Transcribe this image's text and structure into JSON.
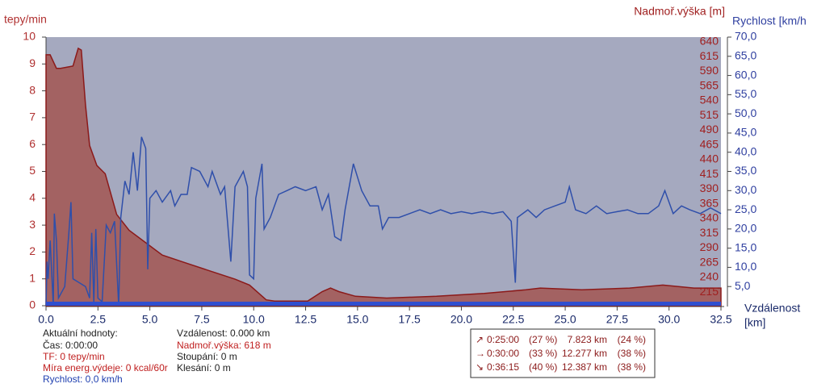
{
  "chart_data": {
    "type": "area-line",
    "x_label": "Vzdálenost",
    "x_unit": "[km]",
    "y_label": "tepy/min",
    "y2_label": "Nadmoř.výška [m]",
    "y3_label": "Rychlost [km/h",
    "xlim": [
      0,
      32.5
    ],
    "xticks": [
      {
        "value": 0,
        "label": "0.0"
      },
      2.5,
      {
        "value": 5,
        "label": "5.0"
      },
      7.5,
      {
        "value": 10,
        "label": "10.0"
      },
      12.5,
      {
        "value": 15,
        "label": "15.0"
      },
      17.5,
      {
        "value": 20,
        "label": "20.0"
      },
      22.5,
      {
        "value": 25,
        "label": "25.0"
      },
      27.5,
      {
        "value": 30,
        "label": "30.0"
      },
      32.5
    ],
    "ylim": [
      0,
      10
    ],
    "yticks": [
      0,
      1,
      2,
      3,
      4,
      5,
      6,
      7,
      8,
      9,
      10
    ],
    "y2lim": [
      192,
      648
    ],
    "y2ticks": [
      215,
      240,
      265,
      290,
      315,
      340,
      365,
      390,
      415,
      440,
      465,
      490,
      515,
      540,
      565,
      590,
      615,
      640
    ],
    "y3lim": [
      0,
      70
    ],
    "y3ticks": [
      {
        "value": 5,
        "label": "5,0"
      },
      {
        "value": 10,
        "label": "10,0"
      },
      {
        "value": 15,
        "label": "15,0"
      },
      {
        "value": 20,
        "label": "20,0"
      },
      {
        "value": 25,
        "label": "25,0"
      },
      {
        "value": 30,
        "label": "30,0"
      },
      {
        "value": 35,
        "label": "35,0"
      },
      {
        "value": 40,
        "label": "40,0"
      },
      {
        "value": 45,
        "label": "45,0"
      },
      {
        "value": 50,
        "label": "50,0"
      },
      {
        "value": 55,
        "label": "55,0"
      },
      {
        "value": 60,
        "label": "60,0"
      },
      {
        "value": 65,
        "label": "65,0"
      },
      {
        "value": 70,
        "label": "70,0"
      }
    ],
    "series": [
      {
        "name": "Nadmoř.výška",
        "axis": "y2",
        "kind": "area",
        "color": "#a36262",
        "x": [
          0,
          0.2,
          0.5,
          0.7,
          1.3,
          1.55,
          1.7,
          1.9,
          2.1,
          2.45,
          2.85,
          3.4,
          4.0,
          4.8,
          5.6,
          6.7,
          7.9,
          9.1,
          9.8,
          10.6,
          11.0,
          12.6,
          13.3,
          13.7,
          14.1,
          14.9,
          16.4,
          18.8,
          21.1,
          23.1,
          23.8,
          25.8,
          28.1,
          29.7,
          31.2,
          32.5
        ],
        "values": [
          618,
          618,
          595,
          595,
          599,
          629,
          626,
          533,
          464,
          430,
          416,
          347,
          320,
          299,
          278,
          265,
          251,
          237,
          227,
          202,
          200,
          200,
          216,
          222,
          216,
          208,
          205,
          208,
          213,
          219,
          222,
          219,
          222,
          227,
          222,
          222
        ]
      },
      {
        "name": "Rychlost",
        "axis": "y3",
        "kind": "line",
        "color": "#2f4faa",
        "x": [
          0,
          0.05,
          0.1,
          0.2,
          0.35,
          0.4,
          0.5,
          0.6,
          0.9,
          1.1,
          1.2,
          1.3,
          1.6,
          1.9,
          2.1,
          2.2,
          2.3,
          2.4,
          2.5,
          2.7,
          2.9,
          3.1,
          3.3,
          3.5,
          3.6,
          3.8,
          4.0,
          4.2,
          4.4,
          4.6,
          4.8,
          4.9,
          5.0,
          5.3,
          5.6,
          6.0,
          6.2,
          6.5,
          6.8,
          7.0,
          7.4,
          7.8,
          8.0,
          8.4,
          8.6,
          8.9,
          9.1,
          9.5,
          9.7,
          9.8,
          10.0,
          10.1,
          10.4,
          10.5,
          10.8,
          11.2,
          11.6,
          12.0,
          12.5,
          13.0,
          13.3,
          13.6,
          13.9,
          14.2,
          14.4,
          14.8,
          15.2,
          15.6,
          16.0,
          16.2,
          16.5,
          17.0,
          17.5,
          18.0,
          18.5,
          19.0,
          19.5,
          20.0,
          20.5,
          21.0,
          21.5,
          22.0,
          22.4,
          22.6,
          22.7,
          23.2,
          23.6,
          24.0,
          24.5,
          25.0,
          25.2,
          25.5,
          26.0,
          26.5,
          27.0,
          27.5,
          28.0,
          28.5,
          29.0,
          29.5,
          29.8,
          30.2,
          30.6,
          31.0,
          31.5,
          32.0,
          32.5
        ],
        "values": [
          0,
          11.5,
          7,
          17,
          0,
          24,
          17,
          2,
          5,
          19,
          27,
          7,
          6,
          5,
          2,
          19,
          1,
          20,
          2,
          1,
          21,
          19,
          22,
          0,
          23,
          32.5,
          29,
          40,
          30,
          44,
          41,
          9.5,
          28,
          30,
          27,
          30,
          26,
          29,
          29,
          36,
          35,
          31,
          35,
          29,
          31,
          11.5,
          31,
          35,
          31,
          8,
          7,
          28,
          37,
          20,
          23,
          29,
          30,
          31,
          30,
          31,
          25,
          29,
          18,
          17,
          25,
          37,
          30,
          26,
          26,
          20,
          23,
          23,
          24,
          25,
          24,
          25,
          24,
          24.5,
          24,
          24.5,
          24,
          24.5,
          22,
          6,
          23,
          25,
          23,
          25,
          26,
          27,
          31,
          25,
          24,
          26,
          24,
          24.5,
          25,
          24,
          24,
          26,
          30,
          24,
          26,
          25,
          24,
          25.5,
          24
        ]
      }
    ]
  },
  "info": {
    "heading": "Aktuální hodnoty:",
    "time": "Čas: 0:00:00",
    "heart_rate": "TF: 0 tepy/min",
    "energy": "Míra energ.výdeje: 0 kcal/60r",
    "speed": "Rychlost: 0,0 km/h",
    "distance": "Vzdálenost: 0.000 km",
    "elevation": "Nadmoř.výška: 618 m",
    "ascent": "Stoupání: 0 m",
    "descent": "Klesání: 0 m"
  },
  "summary": {
    "rows": [
      [
        "↗",
        "0:25:00",
        "(27 %)",
        "7.823 km",
        "(24 %)"
      ],
      [
        "→",
        "0:30:00",
        "(33 %)",
        "12.277 km",
        "(38 %)"
      ],
      [
        "↘",
        "0:36:15",
        "(40 %)",
        "12.387 km",
        "(38 %)"
      ]
    ]
  }
}
